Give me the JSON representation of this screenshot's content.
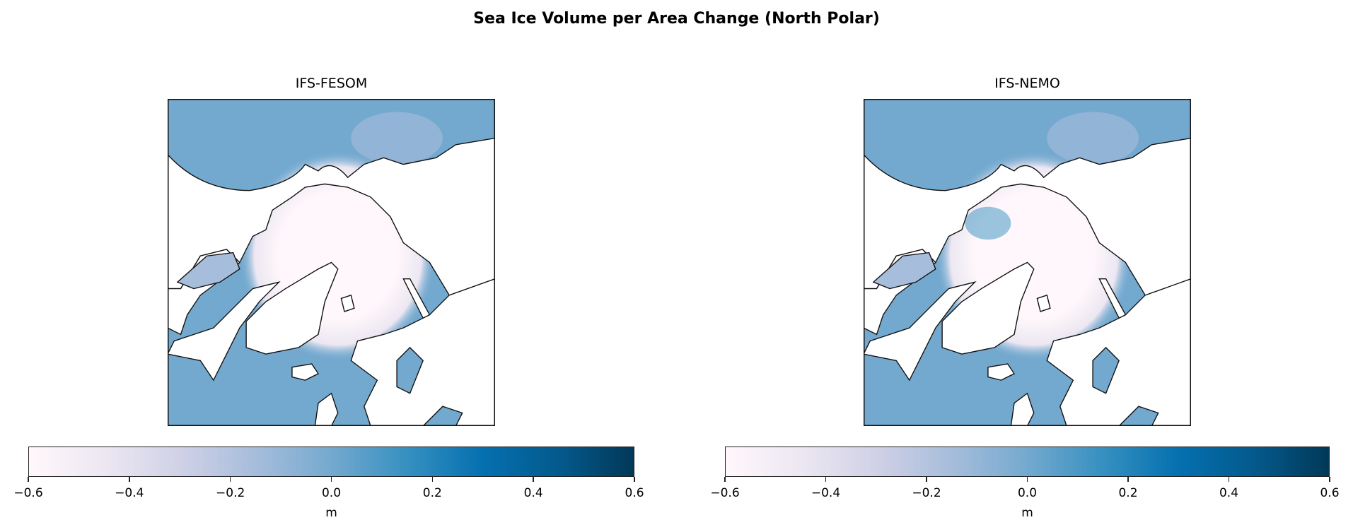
{
  "chart_data": {
    "type": "heatmap",
    "title": "Sea Ice Volume per Area Change (North Polar)",
    "panels": [
      {
        "title": "IFS-FESOM",
        "colorbar": {
          "label": "m",
          "range": [
            -0.6,
            0.6
          ],
          "ticks": [
            "−0.6",
            "−0.4",
            "−0.2",
            "0.0",
            "0.2",
            "0.4",
            "0.6"
          ]
        }
      },
      {
        "title": "IFS-NEMO",
        "colorbar": {
          "label": "m",
          "range": [
            -0.6,
            0.6
          ],
          "ticks": [
            "−0.6",
            "−0.4",
            "−0.2",
            "0.0",
            "0.2",
            "0.4",
            "0.6"
          ]
        }
      }
    ],
    "colormap": [
      "#fff7fb",
      "#ece7f2",
      "#d0d1e6",
      "#a6bddb",
      "#74a9cf",
      "#3690c0",
      "#0570b0",
      "#045a8d",
      "#023858"
    ],
    "projection": "north-polar-stereographic"
  }
}
